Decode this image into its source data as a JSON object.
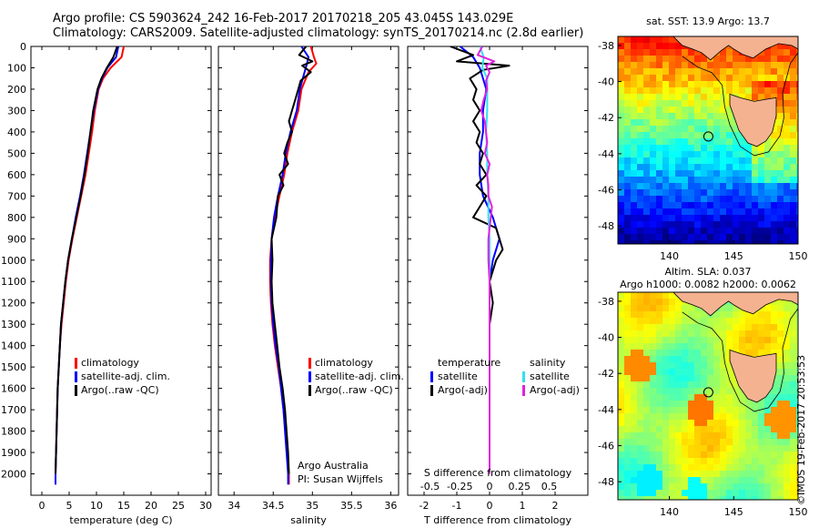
{
  "header": {
    "title_line1": "Argo profile: CS 5903624_242 16-Feb-2017 20170218_205 43.045S 143.029E",
    "title_line2": "Climatology: CARS2009. Satellite-adjusted climatology: synTS_20170214.nc (2.8d earlier)"
  },
  "footer": {
    "credit": "©IMOS 19-Feb-2017 20:53:53"
  },
  "colors": {
    "climatology": "#ff0000",
    "satellite": "#0000ff",
    "argo": "#000000",
    "salinity_satellite": "#33e0f0",
    "salinity_argo": "#e020e0"
  },
  "panels": {
    "temperature": {
      "xlabel": "temperature (deg C)"
    },
    "salinity": {
      "xlabel": "salinity",
      "annotation_line1": "Argo Australia",
      "annotation_line2": "PI: Susan Wijffels"
    },
    "difference": {
      "xlabel": "T difference from climatology",
      "xlabel_top": "S difference from climatology"
    }
  },
  "maps": {
    "sst": {
      "title": "sat. SST: 13.9 Argo: 13.7",
      "lon_ticks": [
        "140",
        "145",
        "150"
      ],
      "lat_ticks": [
        "-38",
        "-40",
        "-42",
        "-44",
        "-46",
        "-48"
      ],
      "xlim": [
        136,
        150
      ],
      "ylim": [
        -49,
        -37.5
      ]
    },
    "sla": {
      "title_line1": "Altim. SLA: 0.037",
      "title_line2": "Argo h1000: 0.0082 h2000: 0.0062",
      "lon_ticks": [
        "140",
        "145",
        "150"
      ],
      "lat_ticks": [
        "-38",
        "-40",
        "-42",
        "-44",
        "-46",
        "-48"
      ],
      "xlim": [
        136,
        150
      ],
      "ylim": [
        -49,
        -37.5
      ]
    },
    "argo_position": {
      "lon": 143.029,
      "lat": -43.045
    }
  },
  "chart_data": [
    {
      "type": "line",
      "xlabel": "temperature (deg C)",
      "ylabel": "",
      "xlim": [
        -2,
        31
      ],
      "ylim": [
        2100,
        0
      ],
      "x_ticks": [
        "0",
        "5",
        "10",
        "15",
        "20",
        "25",
        "30"
      ],
      "y_ticks": [
        "0",
        "100",
        "200",
        "300",
        "400",
        "500",
        "600",
        "700",
        "800",
        "900",
        "1000",
        "1100",
        "1200",
        "1300",
        "1400",
        "1500",
        "1600",
        "1700",
        "1800",
        "1900",
        "2000"
      ],
      "legend": [
        "climatology",
        "satellite-adj. clim.",
        "Argo(..raw -QC)"
      ],
      "series": [
        {
          "name": "climatology",
          "depth": [
            0,
            50,
            100,
            150,
            200,
            300,
            400,
            500,
            600,
            700,
            800,
            900,
            1000,
            1100,
            1200,
            1300,
            1400,
            1500,
            1600,
            1700,
            1800,
            1900,
            2000,
            2050
          ],
          "values": [
            15.0,
            14.6,
            12.6,
            11.2,
            10.4,
            9.7,
            9.2,
            8.6,
            8.0,
            7.2,
            6.4,
            5.6,
            4.9,
            4.4,
            4.0,
            3.6,
            3.3,
            3.1,
            2.9,
            2.8,
            2.7,
            2.6,
            2.5,
            2.5
          ]
        },
        {
          "name": "satellite-adj. clim.",
          "depth": [
            0,
            50,
            100,
            150,
            200,
            300,
            400,
            500,
            600,
            700,
            800,
            900,
            1000,
            1100,
            1200,
            1300,
            1400,
            1500,
            1600,
            1700,
            1800,
            1900,
            2000,
            2050
          ],
          "values": [
            14.0,
            13.6,
            12.0,
            11.0,
            10.3,
            9.5,
            8.9,
            8.3,
            7.7,
            7.0,
            6.2,
            5.5,
            4.8,
            4.3,
            3.9,
            3.5,
            3.3,
            3.1,
            2.9,
            2.8,
            2.7,
            2.6,
            2.5,
            2.5
          ]
        },
        {
          "name": "Argo(..raw -QC)",
          "depth": [
            0,
            50,
            100,
            150,
            200,
            300,
            400,
            500,
            600,
            700,
            800,
            900,
            1000,
            1100,
            1200,
            1300,
            1400,
            1500,
            1600,
            1700,
            1800,
            1900,
            2000
          ],
          "values": [
            13.8,
            13.1,
            11.9,
            10.9,
            10.2,
            9.4,
            8.9,
            8.4,
            7.8,
            7.1,
            6.3,
            5.5,
            4.8,
            4.3,
            3.9,
            3.5,
            3.3,
            3.1,
            2.9,
            2.8,
            2.7,
            2.6,
            2.5
          ]
        }
      ]
    },
    {
      "type": "line",
      "xlabel": "salinity",
      "ylabel": "",
      "xlim": [
        33.8,
        36.1
      ],
      "ylim": [
        2100,
        0
      ],
      "x_ticks": [
        "34",
        "34.5",
        "35",
        "35.5",
        "36"
      ],
      "legend": [
        "climatology",
        "satellite-adj. clim.",
        "Argo(..raw -QC)"
      ],
      "series": [
        {
          "name": "climatology",
          "depth": [
            0,
            50,
            80,
            120,
            200,
            300,
            400,
            500,
            600,
            700,
            800,
            900,
            1000,
            1100,
            1200,
            1300,
            1400,
            1500,
            1600,
            1700,
            1800,
            1900,
            2000,
            2050
          ],
          "values": [
            34.98,
            35.02,
            35.05,
            34.95,
            34.86,
            34.82,
            34.74,
            34.68,
            34.64,
            34.58,
            34.52,
            34.48,
            34.46,
            34.46,
            34.47,
            34.49,
            34.52,
            34.56,
            34.6,
            34.63,
            34.66,
            34.68,
            34.7,
            34.7
          ]
        },
        {
          "name": "satellite-adj. clim.",
          "depth": [
            0,
            50,
            80,
            120,
            200,
            300,
            400,
            500,
            600,
            700,
            800,
            900,
            1000,
            1100,
            1200,
            1300,
            1400,
            1500,
            1600,
            1700,
            1800,
            1900,
            2000,
            2050
          ],
          "values": [
            34.86,
            34.95,
            34.93,
            34.9,
            34.84,
            34.8,
            34.72,
            34.66,
            34.62,
            34.56,
            34.51,
            34.48,
            34.47,
            34.47,
            34.48,
            34.5,
            34.53,
            34.57,
            34.6,
            34.63,
            34.65,
            34.67,
            34.69,
            34.69
          ]
        },
        {
          "name": "Argo(..raw -QC)",
          "depth": [
            0,
            40,
            70,
            90,
            120,
            160,
            200,
            250,
            300,
            350,
            400,
            450,
            500,
            550,
            600,
            650,
            700,
            800,
            900,
            1000,
            1100,
            1200,
            1300,
            1400,
            1500,
            1600,
            1700,
            1800,
            1900,
            2000
          ],
          "values": [
            34.92,
            34.83,
            35.0,
            34.87,
            34.98,
            34.85,
            34.82,
            34.78,
            34.74,
            34.7,
            34.74,
            34.68,
            34.64,
            34.69,
            34.58,
            34.63,
            34.56,
            34.54,
            34.48,
            34.49,
            34.48,
            34.49,
            34.52,
            34.55,
            34.58,
            34.62,
            34.65,
            34.67,
            34.69,
            34.7
          ]
        }
      ]
    },
    {
      "type": "line",
      "xlabel": "T difference from climatology",
      "x2label": "S difference from climatology",
      "xlim": [
        -2.5,
        3
      ],
      "x2lim": [
        -0.6875,
        0.825
      ],
      "ylim": [
        2100,
        0
      ],
      "x_ticks": [
        "-2",
        "-1",
        "0",
        "1",
        "2"
      ],
      "x2_ticks": [
        "-0.5",
        "-0.25",
        "0",
        "0.25",
        "0.5"
      ],
      "legend": [
        "temperature",
        "satellite",
        "Argo(-adj)",
        "salinity",
        "satellite",
        "Argo(-adj)"
      ],
      "series": [
        {
          "name": "satellite",
          "variable": "temperature",
          "depth": [
            0,
            50,
            100,
            150,
            200,
            300,
            400,
            500,
            600,
            700,
            800,
            900,
            1000,
            1100,
            1200,
            1300,
            1400,
            1500,
            1600,
            1700,
            1800,
            1900,
            2000
          ],
          "values": [
            -0.9,
            -0.5,
            -0.3,
            -0.2,
            -0.1,
            -0.2,
            -0.2,
            -0.3,
            -0.3,
            -0.2,
            0.1,
            0.3,
            0.1,
            0.0,
            0.0,
            0.0,
            0.0,
            0.0,
            0.0,
            0.0,
            0.0,
            0.0,
            0.0
          ]
        },
        {
          "name": "Argo(-adj)",
          "variable": "temperature",
          "depth": [
            0,
            40,
            70,
            90,
            110,
            150,
            200,
            250,
            300,
            350,
            400,
            450,
            500,
            550,
            600,
            650,
            700,
            750,
            800,
            850,
            900,
            950,
            1000,
            1100,
            1200,
            1300,
            1400,
            1500,
            1600,
            1700,
            1800,
            1900,
            2000
          ],
          "values": [
            -1.2,
            -0.5,
            -1.0,
            0.6,
            -0.2,
            -0.6,
            -0.4,
            -0.5,
            -0.3,
            -0.5,
            -0.3,
            -0.4,
            -0.2,
            -0.3,
            -0.1,
            -0.4,
            -0.1,
            -0.3,
            -0.5,
            0.2,
            0.3,
            0.4,
            0.2,
            0.0,
            0.1,
            0.0,
            0.0,
            0.0,
            0.0,
            0.0,
            0.0,
            0.0,
            0.0
          ]
        },
        {
          "name": "satellite",
          "variable": "salinity",
          "depth": [
            0,
            50,
            100,
            150,
            200,
            300,
            400,
            500,
            600,
            700,
            800,
            900,
            1000,
            1100,
            1200,
            1300,
            1400,
            1500,
            1600,
            1700,
            1800,
            1900,
            2000
          ],
          "values": [
            -0.08,
            -0.05,
            -0.06,
            -0.02,
            -0.02,
            -0.02,
            -0.03,
            -0.02,
            -0.02,
            -0.01,
            -0.01,
            0.0,
            0.0,
            0.0,
            0.0,
            0.0,
            0.0,
            0.0,
            0.0,
            0.0,
            0.0,
            0.0,
            0.0
          ]
        },
        {
          "name": "Argo(-adj)",
          "variable": "salinity",
          "depth": [
            0,
            40,
            70,
            90,
            120,
            160,
            200,
            250,
            300,
            350,
            400,
            450,
            500,
            550,
            600,
            650,
            700,
            750,
            800,
            900,
            1000,
            1100,
            1200,
            1300,
            1400,
            1500,
            1600,
            1700,
            1800,
            1900,
            2000
          ],
          "values": [
            -0.06,
            -0.1,
            0.04,
            -0.03,
            0.0,
            -0.03,
            -0.02,
            -0.05,
            -0.07,
            -0.04,
            -0.03,
            -0.02,
            -0.04,
            0.0,
            -0.02,
            -0.01,
            -0.01,
            0.02,
            0.01,
            -0.01,
            -0.01,
            0.0,
            0.0,
            0.0,
            0.0,
            0.0,
            0.0,
            0.0,
            0.0,
            0.0,
            0.0
          ]
        }
      ]
    }
  ]
}
